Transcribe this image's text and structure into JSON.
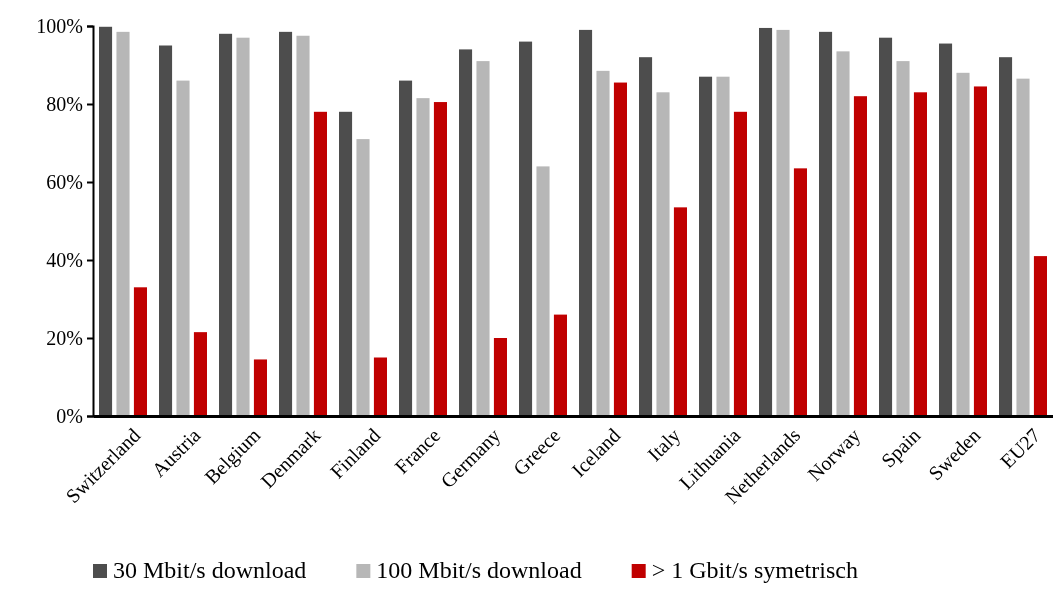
{
  "chart_data": {
    "type": "bar",
    "categories": [
      "Switzerland",
      "Austria",
      "Belgium",
      "Denmark",
      "Finland",
      "France",
      "Germany",
      "Greece",
      "Iceland",
      "Italy",
      "Lithuania",
      "Netherlands",
      "Norway",
      "Spain",
      "Sweden",
      "EU27"
    ],
    "series": [
      {
        "name": "30 Mbit/s download",
        "color": "#4d4d4d",
        "values": [
          99.8,
          95,
          98,
          98.5,
          78,
          86,
          94,
          96,
          99,
          92,
          87,
          99.5,
          98.5,
          97,
          95.5,
          92
        ]
      },
      {
        "name": "100 Mbit/s download",
        "color": "#b7b7b7",
        "values": [
          98.5,
          86,
          97,
          97.5,
          71,
          81.5,
          91,
          64,
          88.5,
          83,
          87,
          99,
          93.5,
          91,
          88,
          86.5
        ]
      },
      {
        "name": "> 1 Gbit/s symetrisch",
        "color": "#c00000",
        "values": [
          33,
          21.5,
          14.5,
          78,
          15,
          80.5,
          20,
          26,
          85.5,
          53.5,
          78,
          63.5,
          82,
          83,
          84.5,
          41
        ]
      }
    ],
    "ylim": [
      0,
      100
    ],
    "yticks": [
      {
        "value": 0,
        "label": "0%"
      },
      {
        "value": 20,
        "label": "20%"
      },
      {
        "value": 40,
        "label": "40%"
      },
      {
        "value": 60,
        "label": "60%"
      },
      {
        "value": 80,
        "label": "80%"
      },
      {
        "value": 100,
        "label": "100%"
      }
    ],
    "grid": false,
    "legend": "bottom"
  }
}
